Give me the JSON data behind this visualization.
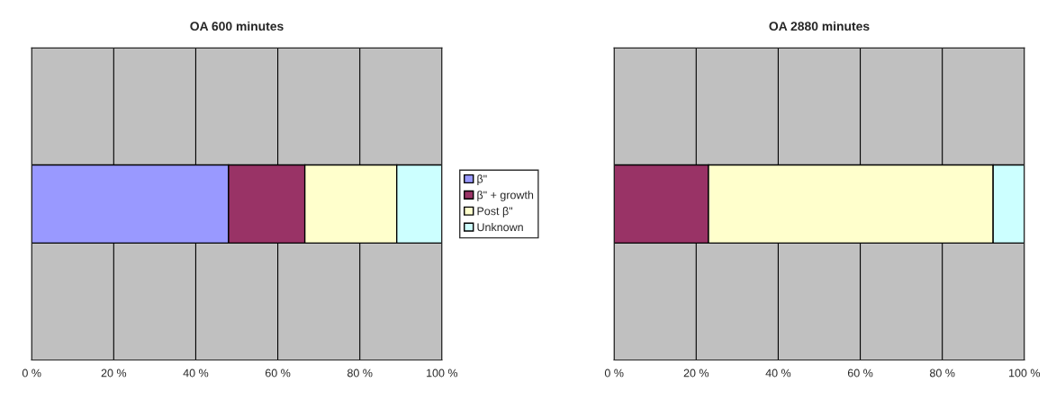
{
  "chart_data": [
    {
      "type": "bar",
      "title": "OA 600 minutes",
      "orientation": "horizontal",
      "stacked": true,
      "categories": [
        null
      ],
      "xlim": [
        0,
        100
      ],
      "xticks": [
        {
          "value": 0,
          "label": "0 %"
        },
        {
          "value": 20,
          "label": "20 %"
        },
        {
          "value": 40,
          "label": "40 %"
        },
        {
          "value": 60,
          "label": "60 %"
        },
        {
          "value": 80,
          "label": "80 %"
        },
        {
          "value": 100,
          "label": "100 %"
        }
      ],
      "grid": "x",
      "legend": "right",
      "series": [
        {
          "name": "β\"",
          "color": "#9999ff",
          "values": [
            48
          ]
        },
        {
          "name": "β\" + growth",
          "color": "#993366",
          "values": [
            18.6
          ]
        },
        {
          "name": "Post β\"",
          "color": "#ffffcc",
          "values": [
            22.4
          ]
        },
        {
          "name": "Unknown",
          "color": "#ccffff",
          "values": [
            11
          ]
        }
      ]
    },
    {
      "type": "bar",
      "title": "OA 2880 minutes",
      "orientation": "horizontal",
      "stacked": true,
      "categories": [
        null
      ],
      "xlim": [
        0,
        100
      ],
      "xticks": [
        {
          "value": 0,
          "label": "0 %"
        },
        {
          "value": 20,
          "label": "20 %"
        },
        {
          "value": 40,
          "label": "40 %"
        },
        {
          "value": 60,
          "label": "60 %"
        },
        {
          "value": 80,
          "label": "80 %"
        },
        {
          "value": 100,
          "label": "100 %"
        }
      ],
      "grid": "x",
      "legend": false,
      "series": [
        {
          "color": "#9999ff",
          "values": [
            0
          ]
        },
        {
          "color": "#993366",
          "values": [
            23
          ]
        },
        {
          "color": "#ffffcc",
          "values": [
            69.4
          ]
        },
        {
          "color": "#ccffff",
          "values": [
            7.6
          ]
        }
      ]
    }
  ]
}
